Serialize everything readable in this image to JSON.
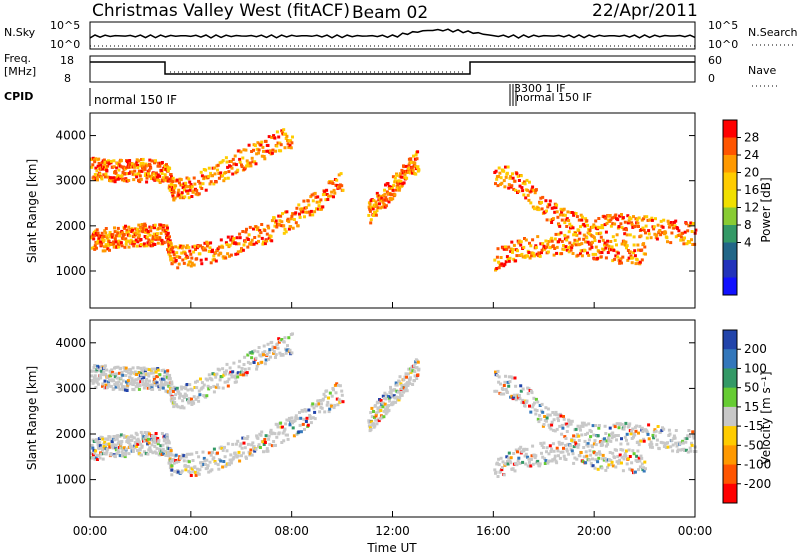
{
  "header": {
    "station": "Christmas Valley West (fitACF)",
    "beam": "Beam 02",
    "date": "22/Apr/2011"
  },
  "top_panels": {
    "nsky_label": "N.Sky",
    "nsky_ticks": [
      "10^5",
      "10^0"
    ],
    "nsearch_label": "N.Search",
    "nsearch_ticks": [
      "10^5",
      "10^0"
    ],
    "freq_label": "Freq.",
    "freq_unit": "[MHz]",
    "freq_ticks": [
      "18",
      "8"
    ],
    "nave_label": "Nave",
    "nave_ticks": [
      "60",
      "0"
    ],
    "cpid_label": "CPID",
    "cpid_first": "normal 150 IF",
    "cpid_overlap": [
      "3300 1 IF",
      "normal 150 IF"
    ]
  },
  "chart_data": [
    {
      "type": "heatmap",
      "title": "",
      "xlabel": "",
      "ylabel": "Slant Range [km]",
      "colorbar_label": "Power [dB]",
      "colorbar_ticks": [
        "28",
        "24",
        "20",
        "16",
        "12",
        "8",
        "4"
      ],
      "colorbar_colors": [
        "#ff0000",
        "#ff5500",
        "#ff9900",
        "#ffcc00",
        "#f0e000",
        "#88cc33",
        "#339966",
        "#226688",
        "#2233bb",
        "#1111ff"
      ],
      "y_ticks": [
        "4000",
        "3000",
        "2000",
        "1000"
      ],
      "ylim": [
        180,
        4500
      ],
      "xlim": [
        0,
        24
      ],
      "series": [
        {
          "points": [
            [
              0.0,
              1700
            ],
            [
              0.5,
              1720
            ],
            [
              1.0,
              1760
            ],
            [
              1.5,
              1800
            ],
            [
              2.0,
              1820
            ],
            [
              2.5,
              1840
            ],
            [
              3.0,
              1800
            ],
            [
              3.2,
              1350
            ],
            [
              4.0,
              1350
            ],
            [
              5.0,
              1500
            ],
            [
              6.0,
              1700
            ],
            [
              7.0,
              1900
            ],
            [
              8.0,
              2200
            ],
            [
              9.0,
              2600
            ],
            [
              10.0,
              3000
            ]
          ]
        },
        {
          "points": [
            [
              0.0,
              3300
            ],
            [
              0.5,
              3280
            ],
            [
              1.0,
              3250
            ],
            [
              1.5,
              3230
            ],
            [
              2.0,
              3260
            ],
            [
              2.5,
              3240
            ],
            [
              3.0,
              3200
            ],
            [
              3.3,
              2800
            ],
            [
              4.0,
              2900
            ],
            [
              5.0,
              3200
            ],
            [
              6.0,
              3500
            ],
            [
              7.0,
              3800
            ],
            [
              8.0,
              4000
            ]
          ]
        },
        {
          "points": [
            [
              16.0,
              3200
            ],
            [
              17.0,
              3000
            ],
            [
              18.0,
              2400
            ],
            [
              19.0,
              2100
            ],
            [
              20.0,
              1980
            ],
            [
              21.0,
              2050
            ],
            [
              22.0,
              2000
            ],
            [
              23.0,
              1900
            ],
            [
              24.0,
              1850
            ]
          ]
        },
        {
          "points": [
            [
              11.0,
              2300
            ],
            [
              11.5,
              2600
            ],
            [
              12.0,
              2900
            ],
            [
              12.5,
              3200
            ],
            [
              13.0,
              3500
            ]
          ]
        },
        {
          "points": [
            [
              16.0,
              1300
            ],
            [
              17.0,
              1500
            ],
            [
              18.0,
              1600
            ],
            [
              19.0,
              1650
            ],
            [
              20.0,
              1500
            ],
            [
              21.0,
              1450
            ],
            [
              22.0,
              1400
            ]
          ]
        }
      ]
    },
    {
      "type": "heatmap",
      "title": "",
      "xlabel": "Time UT",
      "ylabel": "Slant Range [km]",
      "colorbar_label": "Velocity [m s⁻¹]",
      "colorbar_ticks": [
        "200",
        "100",
        "50",
        "15",
        "-15",
        "-50",
        "-100",
        "-200"
      ],
      "colorbar_colors": [
        "#2244aa",
        "#3377bb",
        "#339966",
        "#66cc33",
        "#c8c8c8",
        "#ffcc00",
        "#ff9900",
        "#ff5500",
        "#ff0000"
      ],
      "y_ticks": [
        "4000",
        "3000",
        "2000",
        "1000"
      ],
      "x_ticks": [
        "00:00",
        "04:00",
        "08:00",
        "12:00",
        "16:00",
        "20:00",
        "00:00"
      ],
      "ylim": [
        180,
        4500
      ],
      "xlim": [
        0,
        24
      ]
    }
  ]
}
